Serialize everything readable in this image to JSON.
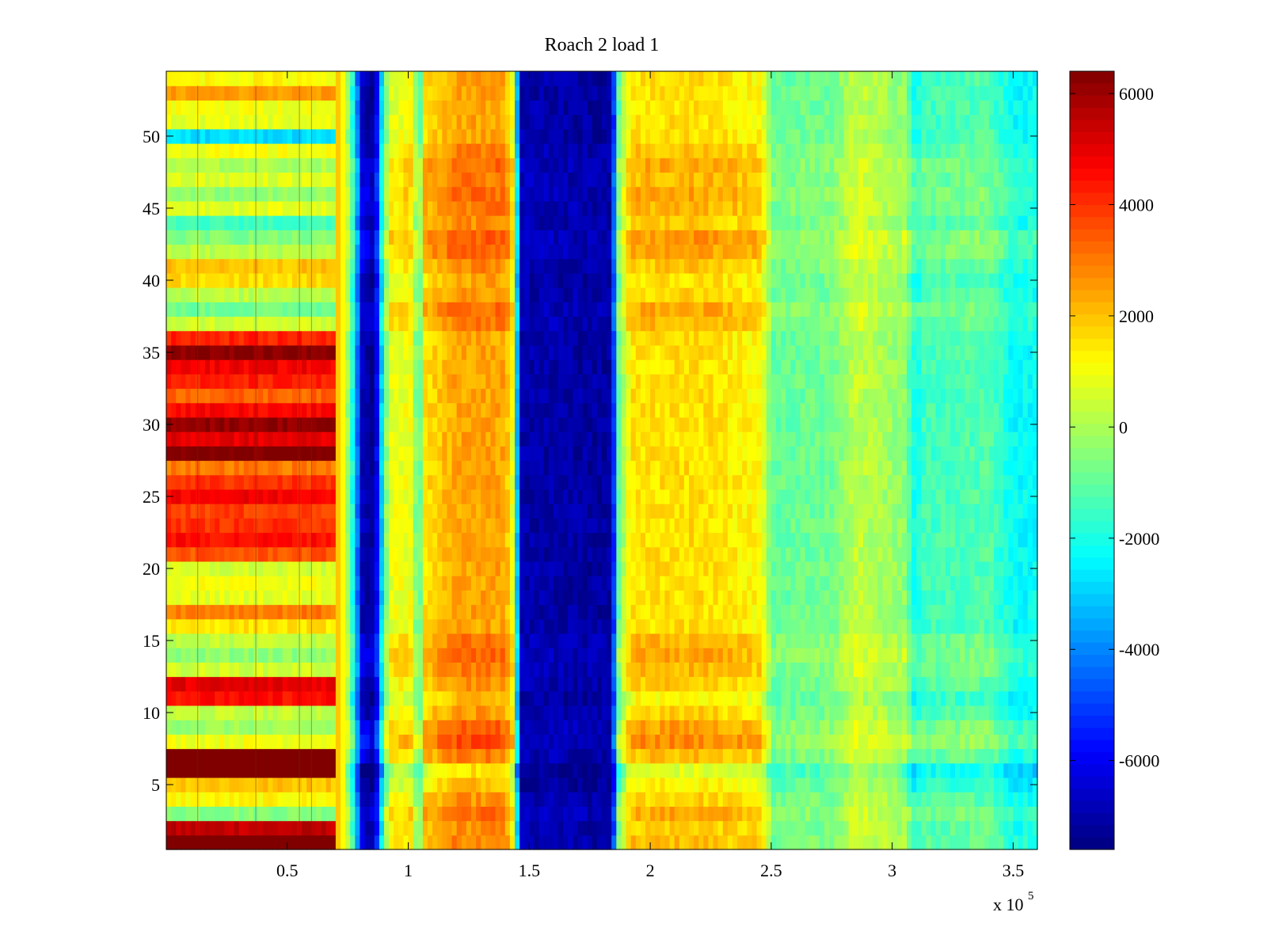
{
  "chart_data": {
    "type": "heatmap",
    "title": "Roach 2 load 1",
    "xlabel": "",
    "ylabel": "",
    "x_exponent_label": "x 10",
    "x_exponent_power": "5",
    "xlim": [
      0,
      3.6
    ],
    "ylim": [
      0.5,
      54.5
    ],
    "x_ticks": [
      0.5,
      1,
      1.5,
      2,
      2.5,
      3,
      3.5
    ],
    "x_tick_labels": [
      "0.5",
      "1",
      "1.5",
      "2",
      "2.5",
      "3",
      "3.5"
    ],
    "y_ticks": [
      5,
      10,
      15,
      20,
      25,
      30,
      35,
      40,
      45,
      50
    ],
    "y_tick_labels": [
      "5",
      "10",
      "15",
      "20",
      "25",
      "30",
      "35",
      "40",
      "45",
      "50"
    ],
    "x_units_scale": 100000,
    "rows": 54,
    "columns_description": "x bins across 0 to 3.6e5",
    "x_profile": [
      {
        "x": 0.0,
        "v": 3000
      },
      {
        "x": 0.68,
        "v": 3000
      },
      {
        "x": 0.74,
        "v": 800
      },
      {
        "x": 0.78,
        "v": -3000
      },
      {
        "x": 0.81,
        "v": -6800
      },
      {
        "x": 0.86,
        "v": -7500
      },
      {
        "x": 0.89,
        "v": -3000
      },
      {
        "x": 0.92,
        "v": 800
      },
      {
        "x": 1.02,
        "v": 1000
      },
      {
        "x": 1.04,
        "v": -2000
      },
      {
        "x": 1.07,
        "v": 1500
      },
      {
        "x": 1.2,
        "v": 2400
      },
      {
        "x": 1.4,
        "v": 2400
      },
      {
        "x": 1.44,
        "v": 500
      },
      {
        "x": 1.46,
        "v": -7000
      },
      {
        "x": 1.84,
        "v": -7200
      },
      {
        "x": 1.87,
        "v": -1000
      },
      {
        "x": 1.92,
        "v": 1500
      },
      {
        "x": 2.2,
        "v": 1600
      },
      {
        "x": 2.46,
        "v": 1200
      },
      {
        "x": 2.5,
        "v": -1000
      },
      {
        "x": 2.75,
        "v": -800
      },
      {
        "x": 2.85,
        "v": 300
      },
      {
        "x": 3.05,
        "v": -400
      },
      {
        "x": 3.1,
        "v": -2400
      },
      {
        "x": 3.12,
        "v": -1500
      },
      {
        "x": 3.4,
        "v": -1200
      },
      {
        "x": 3.5,
        "v": -2300
      },
      {
        "x": 3.6,
        "v": -2300
      }
    ],
    "row_left_bias": {
      "1": 6800,
      "2": 5500,
      "3": -500,
      "4": 1200,
      "5": 2000,
      "6": 6800,
      "7": 6800,
      "8": 1000,
      "9": -200,
      "10": 300,
      "11": 4500,
      "12": 5000,
      "13": 500,
      "14": -400,
      "15": 300,
      "16": 1500,
      "17": 3000,
      "18": 800,
      "19": 1000,
      "20": 500,
      "21": 3500,
      "22": 4500,
      "23": 4000,
      "24": 3800,
      "25": 4800,
      "26": 4000,
      "27": 3000,
      "28": 6500,
      "29": 5000,
      "30": 6200,
      "31": 4600,
      "32": 3300,
      "33": 4200,
      "34": 4800,
      "35": 6300,
      "36": 4200,
      "37": 500,
      "38": -800,
      "39": 200,
      "40": 1600,
      "41": 2000,
      "42": 200,
      "43": -600,
      "44": -1500,
      "45": 800,
      "46": -400,
      "47": 700,
      "48": 0,
      "49": 1000,
      "50": -2800,
      "51": 800,
      "52": 1000,
      "53": 2500,
      "54": 1200
    },
    "row_mid_bias": {
      "1": 500,
      "2": 300,
      "3": 800,
      "4": 200,
      "5": -300,
      "6": -900,
      "7": 500,
      "8": 1200,
      "9": 900,
      "10": 200,
      "11": -300,
      "12": 300,
      "13": 600,
      "14": 800,
      "15": 600,
      "16": 0,
      "17": 0,
      "18": 0,
      "19": 0,
      "20": 0,
      "37": 600,
      "38": 800,
      "39": 200,
      "40": 0,
      "41": 400,
      "42": 900,
      "43": 1000,
      "44": 300,
      "45": 600,
      "46": 800,
      "47": 600,
      "48": 800,
      "49": 400,
      "50": 0
    },
    "colorbar": {
      "ticks": [
        6000,
        4000,
        2000,
        0,
        -2000,
        -4000,
        -6000
      ],
      "tick_labels": [
        "6000",
        "4000",
        "2000",
        "0",
        "-2000",
        "-4000",
        "-6000"
      ],
      "clim": [
        -7600,
        6400
      ],
      "colormap": "jet"
    }
  }
}
